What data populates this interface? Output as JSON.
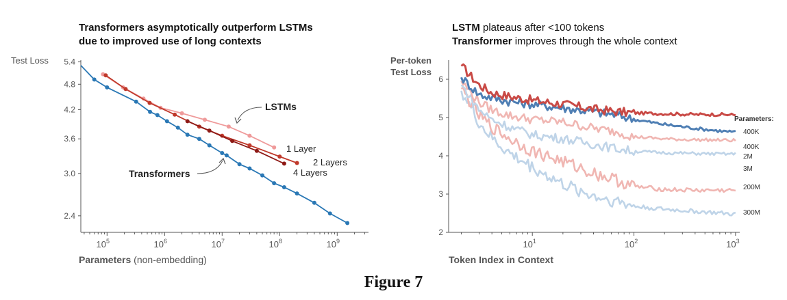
{
  "figure_caption": "Figure 7",
  "colors": {
    "transformer_blue": "#2a78b5",
    "lstm_light": "#ef9a9a",
    "lstm_mid": "#c0392b",
    "lstm_dark": "#8e1a16",
    "plot2_red": "#c94a46",
    "plot2_blue": "#4f7fb4",
    "plot2_light_red": "#f0b6b2",
    "plot2_light_blue": "#bfd4e8",
    "axis": "#555555",
    "label_gray": "#555555"
  },
  "chart_data": [
    {
      "type": "line",
      "title_line1": "Transformers asymptotically outperform LSTMs",
      "title_line2": "due to improved use of long contexts",
      "xlabel_bold": "Parameters",
      "xlabel_rest": " (non-embedding)",
      "ylabel": "Test Loss",
      "x_scale": "log",
      "y_scale": "log",
      "xlim": [
        35000,
        3500000000
      ],
      "ylim": [
        2.2,
        5.45
      ],
      "x_ticks": [
        {
          "value": 100000,
          "label_base": "10",
          "label_exp": "5"
        },
        {
          "value": 1000000,
          "label_base": "10",
          "label_exp": "6"
        },
        {
          "value": 10000000,
          "label_base": "10",
          "label_exp": "7"
        },
        {
          "value": 100000000,
          "label_base": "10",
          "label_exp": "8"
        },
        {
          "value": 1000000000,
          "label_base": "10",
          "label_exp": "9"
        }
      ],
      "y_ticks": [
        {
          "value": 2.4,
          "label": "2.4"
        },
        {
          "value": 3.0,
          "label": "3.0"
        },
        {
          "value": 3.6,
          "label": "3.6"
        },
        {
          "value": 4.2,
          "label": "4.2"
        },
        {
          "value": 4.8,
          "label": "4.8"
        },
        {
          "value": 5.4,
          "label": "5.4"
        }
      ],
      "annotations": {
        "lstms": "LSTMs",
        "transformers": "Transformers"
      },
      "series": [
        {
          "name": "Transformers",
          "color_key": "transformer_blue",
          "x": [
            35000,
            60000,
            100000,
            320000,
            560000,
            750000,
            1100000,
            1700000,
            2500000,
            4000000,
            6000000,
            10000000,
            12000000,
            20000000,
            30000000,
            50000000,
            80000000,
            120000000,
            200000000,
            400000000,
            750000000,
            1500000000
          ],
          "y": [
            5.3,
            4.92,
            4.72,
            4.38,
            4.15,
            4.08,
            3.95,
            3.82,
            3.68,
            3.6,
            3.48,
            3.34,
            3.3,
            3.15,
            3.08,
            2.97,
            2.85,
            2.79,
            2.7,
            2.57,
            2.43,
            2.31
          ],
          "marker_x": [
            60000,
            100000,
            320000,
            560000,
            750000,
            1100000,
            1700000,
            2500000,
            4000000,
            6000000,
            10000000,
            12000000,
            20000000,
            30000000,
            50000000,
            80000000,
            120000000,
            200000000,
            400000000,
            750000000,
            1500000000
          ],
          "marker_y": [
            4.92,
            4.72,
            4.38,
            4.15,
            4.08,
            3.95,
            3.82,
            3.68,
            3.6,
            3.48,
            3.34,
            3.3,
            3.15,
            3.08,
            2.97,
            2.85,
            2.79,
            2.7,
            2.57,
            2.43,
            2.31
          ]
        },
        {
          "name": "1 Layer",
          "color_key": "lstm_light",
          "x": [
            85000,
            190000,
            430000,
            850000,
            2000000,
            5000000,
            13000000,
            30000000,
            80000000
          ],
          "y": [
            5.06,
            4.72,
            4.45,
            4.24,
            4.12,
            3.98,
            3.84,
            3.66,
            3.44
          ]
        },
        {
          "name": "2 Layers",
          "color_key": "lstm_mid",
          "x": [
            95000,
            210000,
            550000,
            1500000,
            4000000,
            10000000,
            30000000,
            100000000,
            200000000
          ],
          "y": [
            5.03,
            4.68,
            4.35,
            4.09,
            3.84,
            3.66,
            3.48,
            3.28,
            3.17
          ]
        },
        {
          "name": "4 Layers",
          "color_key": "lstm_dark",
          "x": [
            2500000,
            6000000,
            15000000,
            40000000,
            120000000
          ],
          "y": [
            3.95,
            3.76,
            3.56,
            3.38,
            3.16
          ]
        }
      ]
    },
    {
      "type": "line",
      "title_line1_bold": "LSTM",
      "title_line1_rest": " plateaus after <100 tokens",
      "title_line2_bold": "Transformer",
      "title_line2_rest": " improves through the whole context",
      "xlabel": "Token Index in Context",
      "ylabel_line1": "Per-token",
      "ylabel_line2": "Test Loss",
      "x_scale": "log",
      "xlim": [
        1.5,
        1100
      ],
      "ylim": [
        2,
        6.5
      ],
      "y_ticks": [
        {
          "value": 2,
          "label": "2"
        },
        {
          "value": 3,
          "label": "3"
        },
        {
          "value": 4,
          "label": "4"
        },
        {
          "value": 5,
          "label": "5"
        },
        {
          "value": 6,
          "label": "6"
        }
      ],
      "x_ticks": [
        {
          "value": 10,
          "label_base": "10",
          "label_exp": "1"
        },
        {
          "value": 100,
          "label_base": "10",
          "label_exp": "2"
        },
        {
          "value": 1000,
          "label_base": "10",
          "label_exp": "3"
        }
      ],
      "legend_title": "Parameters:",
      "series": [
        {
          "name": "400K",
          "color_key": "plot2_red",
          "end_label": "400K",
          "x": [
            2,
            3,
            4,
            6,
            10,
            20,
            40,
            70,
            100,
            200,
            400,
            700,
            1000
          ],
          "y": [
            6.35,
            5.85,
            5.65,
            5.55,
            5.45,
            5.35,
            5.22,
            5.15,
            5.12,
            5.1,
            5.08,
            5.08,
            5.07
          ]
        },
        {
          "name": "400K",
          "color_key": "plot2_blue",
          "end_label": "400K",
          "x": [
            2,
            3,
            4,
            6,
            10,
            20,
            40,
            70,
            100,
            200,
            400,
            700,
            1000
          ],
          "y": [
            6.05,
            5.6,
            5.52,
            5.42,
            5.35,
            5.25,
            5.15,
            5.06,
            4.95,
            4.82,
            4.72,
            4.65,
            4.62
          ]
        },
        {
          "name": "2M",
          "color_key": "plot2_light_red",
          "end_label": "2M",
          "x": [
            2,
            3,
            4,
            6,
            10,
            20,
            40,
            70,
            100,
            200,
            400,
            700,
            1000
          ],
          "y": [
            5.95,
            5.4,
            5.2,
            5.05,
            4.95,
            4.88,
            4.72,
            4.62,
            4.5,
            4.44,
            4.42,
            4.41,
            4.4
          ]
        },
        {
          "name": "3M",
          "color_key": "plot2_light_blue",
          "end_label": "3M",
          "x": [
            2,
            3,
            4,
            6,
            10,
            20,
            40,
            70,
            100,
            200,
            400,
            700,
            1000
          ],
          "y": [
            5.85,
            5.2,
            4.95,
            4.75,
            4.55,
            4.45,
            4.3,
            4.18,
            4.12,
            4.08,
            4.06,
            4.05,
            4.05
          ]
        },
        {
          "name": "200M",
          "color_key": "plot2_light_red",
          "end_label": "200M",
          "x": [
            2,
            3,
            4,
            6,
            10,
            20,
            40,
            70,
            100,
            200,
            400,
            700,
            1000
          ],
          "y": [
            5.75,
            5.05,
            4.75,
            4.45,
            4.12,
            3.85,
            3.55,
            3.35,
            3.2,
            3.12,
            3.1,
            3.1,
            3.1
          ]
        },
        {
          "name": "300M",
          "color_key": "plot2_light_blue",
          "end_label": "300M",
          "x": [
            2,
            3,
            4,
            6,
            10,
            20,
            40,
            70,
            100,
            200,
            400,
            700,
            1000
          ],
          "y": [
            5.7,
            4.85,
            4.45,
            4.05,
            3.7,
            3.25,
            2.95,
            2.8,
            2.68,
            2.6,
            2.55,
            2.5,
            2.47
          ]
        }
      ]
    }
  ]
}
